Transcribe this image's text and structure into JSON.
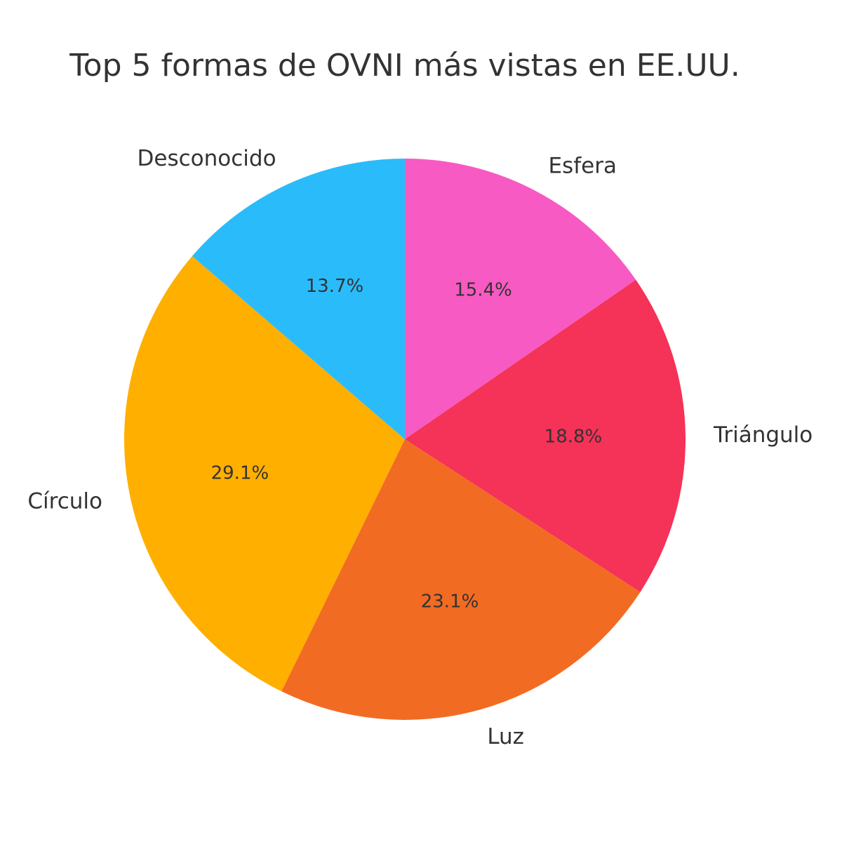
{
  "chart_data": {
    "type": "pie",
    "title": "Top 5 formas de OVNI más vistas en EE.UU.",
    "categories": [
      "Esfera",
      "Triángulo",
      "Luz",
      "Círculo",
      "Desconocido"
    ],
    "values": [
      15.4,
      18.8,
      23.1,
      29.1,
      13.7
    ],
    "value_labels": [
      "15.4%",
      "18.8%",
      "23.1%",
      "29.1%",
      "13.7%"
    ],
    "colors": [
      "#f75ac2",
      "#f53257",
      "#f26b22",
      "#ffaf00",
      "#2abcfa"
    ],
    "start_angle_deg": 90,
    "direction": "clockwise",
    "legend": "none"
  }
}
